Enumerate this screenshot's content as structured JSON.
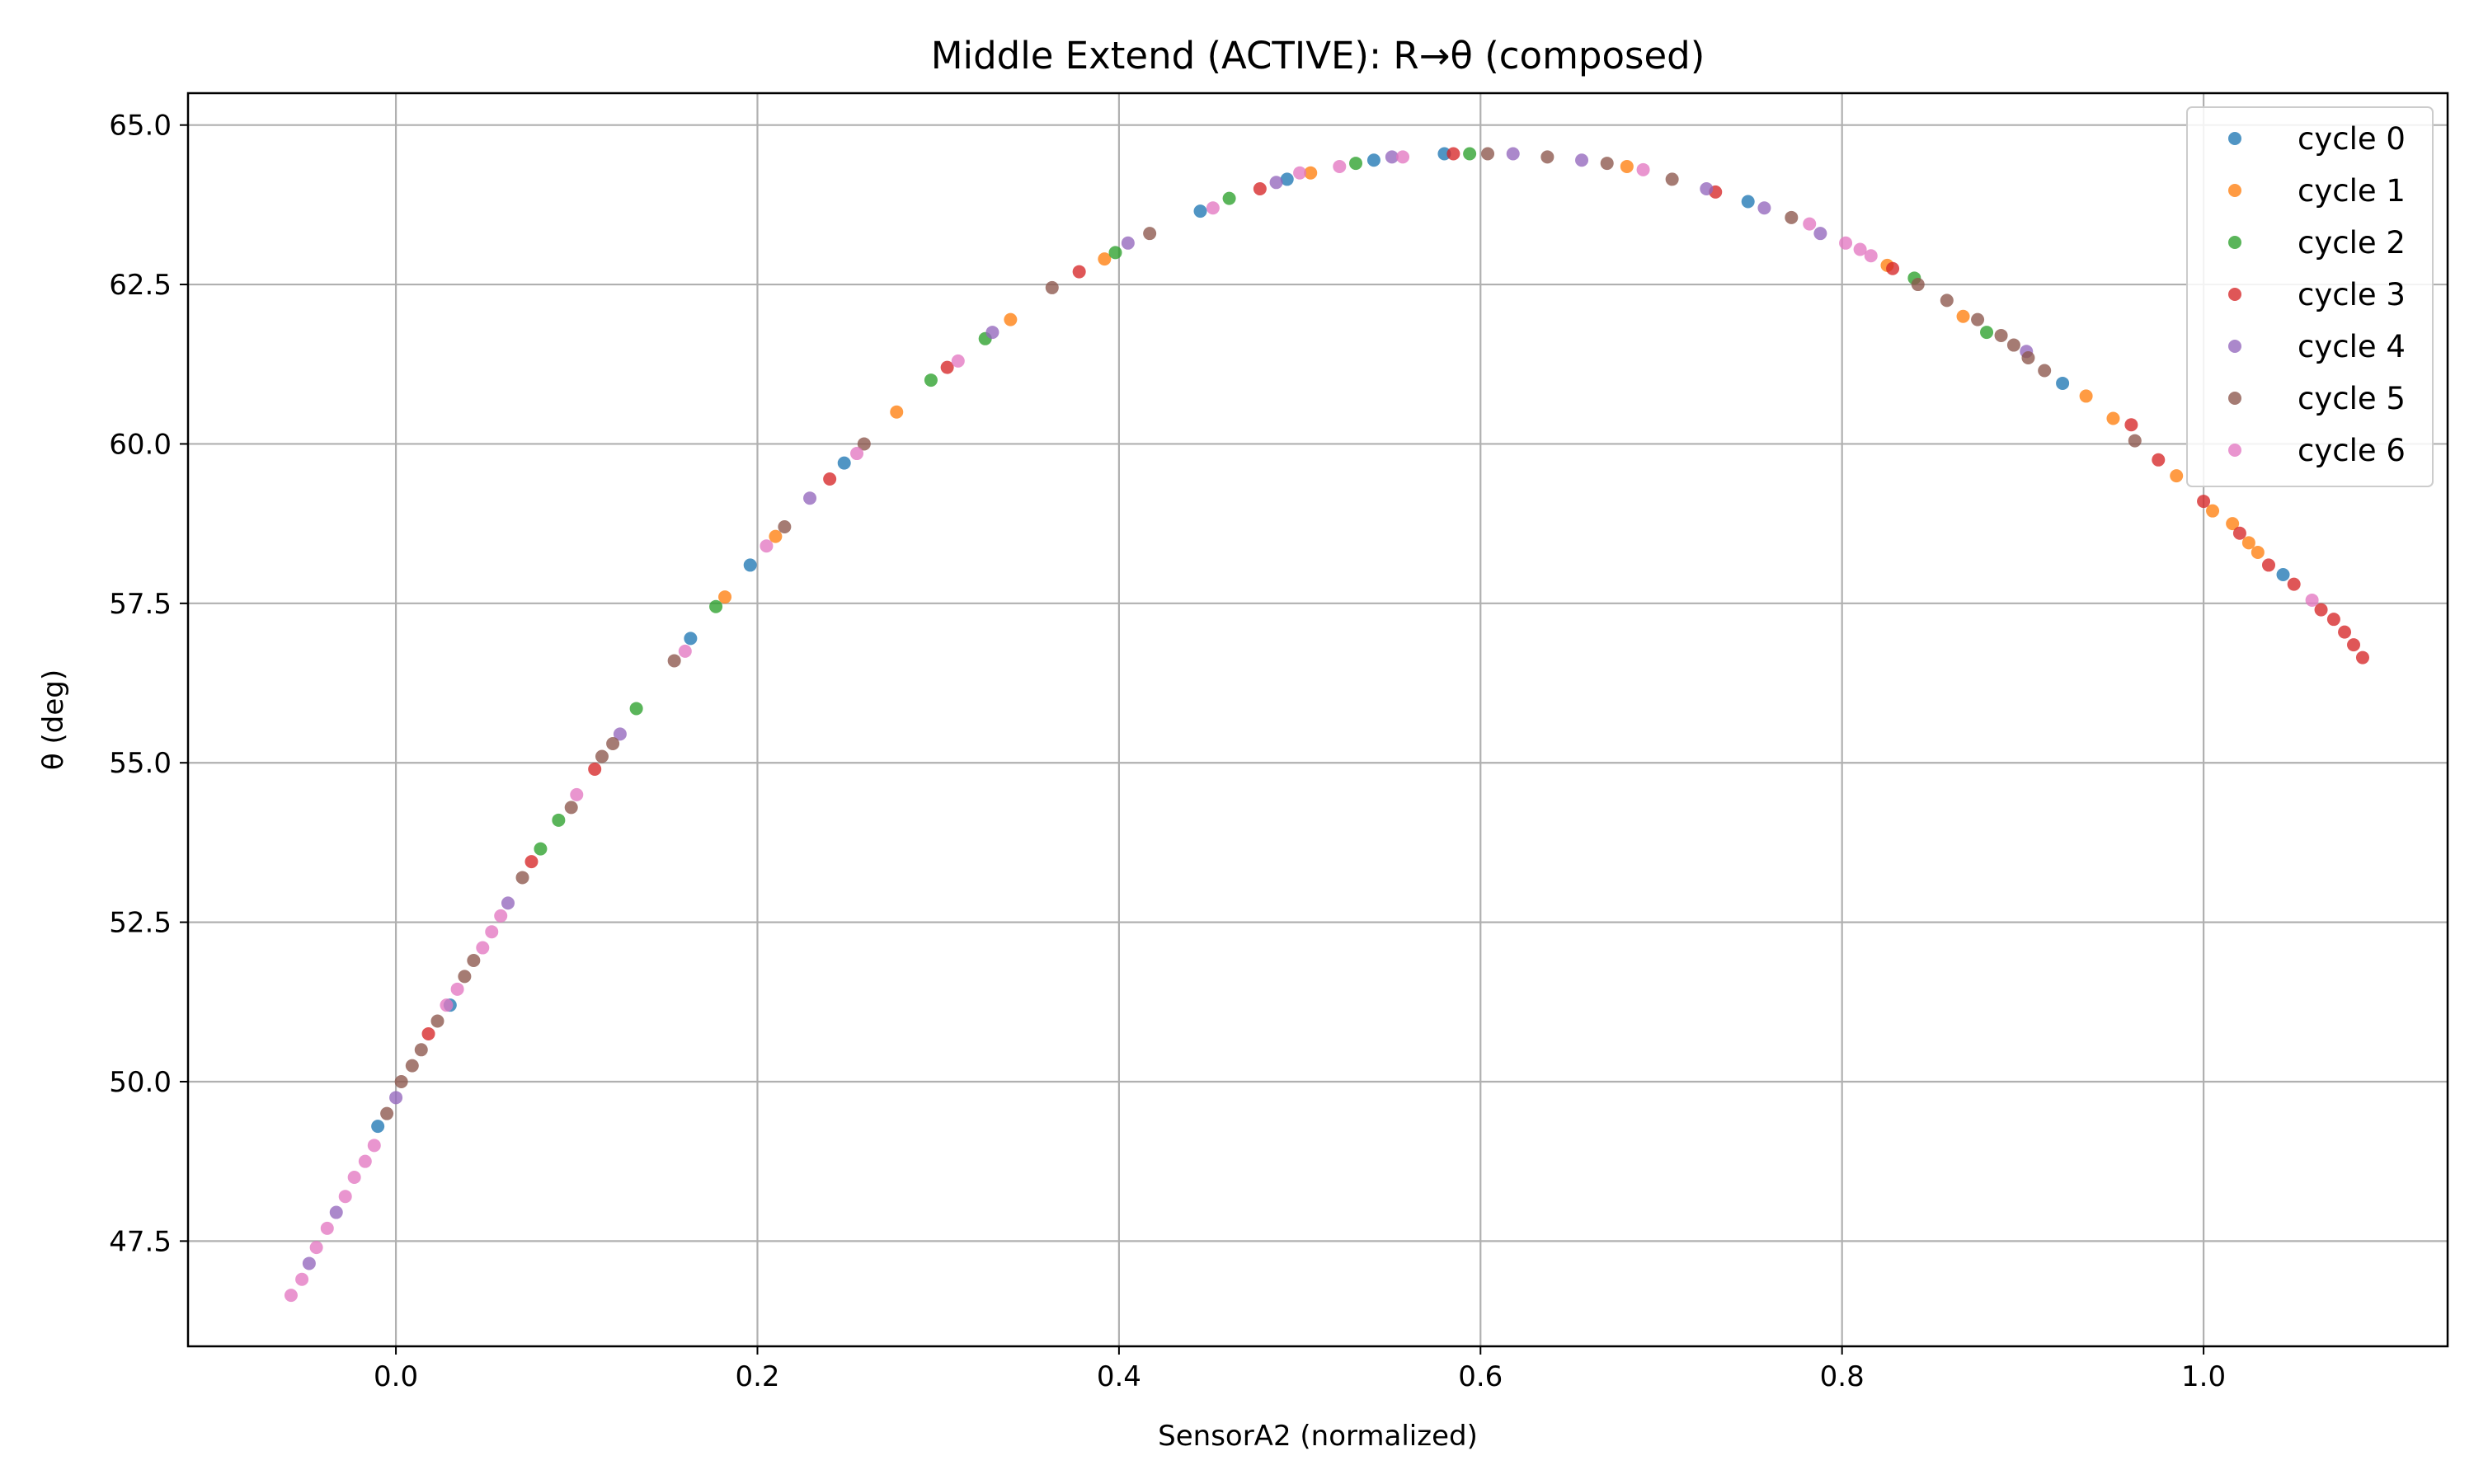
{
  "chart_data": {
    "type": "scatter",
    "title": "Middle Extend (ACTIVE): R→θ (composed)",
    "xlabel": "SensorA2 (normalized)",
    "ylabel": "θ (deg)",
    "xlim": [
      -0.115,
      1.135
    ],
    "ylim": [
      45.85,
      65.5
    ],
    "xticks": [
      0.0,
      0.2,
      0.4,
      0.6,
      0.8,
      1.0
    ],
    "xtick_labels": [
      "0.0",
      "0.2",
      "0.4",
      "0.6",
      "0.8",
      "1.0"
    ],
    "yticks": [
      47.5,
      50.0,
      52.5,
      55.0,
      57.5,
      60.0,
      62.5,
      65.0
    ],
    "ytick_labels": [
      "47.5",
      "50.0",
      "52.5",
      "55.0",
      "57.5",
      "60.0",
      "62.5",
      "65.0"
    ],
    "grid": true,
    "legend_position": "top-right",
    "series": [
      {
        "name": "cycle 0",
        "color": "#1f77b4",
        "points": [
          [
            0.196,
            58.1
          ],
          [
            0.163,
            56.95
          ],
          [
            0.248,
            59.7
          ],
          [
            0.445,
            63.65
          ],
          [
            0.493,
            64.15
          ],
          [
            0.541,
            64.45
          ],
          [
            0.58,
            64.55
          ],
          [
            0.748,
            63.8
          ],
          [
            0.922,
            60.95
          ],
          [
            1.044,
            57.95
          ],
          [
            0.03,
            51.2
          ],
          [
            -0.01,
            49.3
          ]
        ]
      },
      {
        "name": "cycle 1",
        "color": "#ff7f0e",
        "points": [
          [
            0.182,
            57.6
          ],
          [
            0.21,
            58.55
          ],
          [
            0.277,
            60.5
          ],
          [
            0.34,
            61.95
          ],
          [
            0.392,
            62.9
          ],
          [
            0.506,
            64.25
          ],
          [
            0.681,
            64.35
          ],
          [
            0.825,
            62.8
          ],
          [
            0.867,
            62.0
          ],
          [
            0.935,
            60.75
          ],
          [
            0.95,
            60.4
          ],
          [
            0.985,
            59.5
          ],
          [
            1.005,
            58.95
          ],
          [
            1.016,
            58.75
          ],
          [
            1.025,
            58.45
          ],
          [
            1.03,
            58.3
          ]
        ]
      },
      {
        "name": "cycle 2",
        "color": "#2ca02c",
        "points": [
          [
            0.133,
            55.85
          ],
          [
            0.177,
            57.45
          ],
          [
            0.09,
            54.1
          ],
          [
            0.08,
            53.65
          ],
          [
            0.296,
            61.0
          ],
          [
            0.326,
            61.65
          ],
          [
            0.398,
            63.0
          ],
          [
            0.461,
            63.85
          ],
          [
            0.531,
            64.4
          ],
          [
            0.594,
            64.55
          ],
          [
            0.84,
            62.6
          ],
          [
            0.88,
            61.75
          ]
        ]
      },
      {
        "name": "cycle 3",
        "color": "#d62728",
        "points": [
          [
            0.018,
            50.75
          ],
          [
            0.075,
            53.45
          ],
          [
            0.11,
            54.9
          ],
          [
            0.24,
            59.45
          ],
          [
            0.305,
            61.2
          ],
          [
            0.378,
            62.7
          ],
          [
            0.478,
            64.0
          ],
          [
            0.585,
            64.55
          ],
          [
            0.73,
            63.95
          ],
          [
            0.828,
            62.75
          ],
          [
            0.96,
            60.3
          ],
          [
            0.975,
            59.75
          ],
          [
            1.0,
            59.1
          ],
          [
            1.02,
            58.6
          ],
          [
            1.036,
            58.1
          ],
          [
            1.05,
            57.8
          ],
          [
            1.065,
            57.4
          ],
          [
            1.072,
            57.25
          ],
          [
            1.078,
            57.05
          ],
          [
            1.083,
            56.85
          ],
          [
            1.088,
            56.65
          ]
        ]
      },
      {
        "name": "cycle 4",
        "color": "#9467bd",
        "points": [
          [
            -0.048,
            47.15
          ],
          [
            -0.033,
            47.95
          ],
          [
            0.0,
            49.75
          ],
          [
            0.062,
            52.8
          ],
          [
            0.124,
            55.45
          ],
          [
            0.229,
            59.15
          ],
          [
            0.33,
            61.75
          ],
          [
            0.405,
            63.15
          ],
          [
            0.487,
            64.1
          ],
          [
            0.551,
            64.5
          ],
          [
            0.618,
            64.55
          ],
          [
            0.656,
            64.45
          ],
          [
            0.725,
            64.0
          ],
          [
            0.757,
            63.7
          ],
          [
            0.788,
            63.3
          ],
          [
            0.902,
            61.45
          ]
        ]
      },
      {
        "name": "cycle 5",
        "color": "#8c564b",
        "points": [
          [
            0.003,
            50.0
          ],
          [
            0.009,
            50.25
          ],
          [
            0.014,
            50.5
          ],
          [
            0.023,
            50.95
          ],
          [
            0.038,
            51.65
          ],
          [
            0.043,
            51.9
          ],
          [
            0.07,
            53.2
          ],
          [
            0.097,
            54.3
          ],
          [
            0.114,
            55.1
          ],
          [
            0.12,
            55.3
          ],
          [
            0.154,
            56.6
          ],
          [
            0.215,
            58.7
          ],
          [
            0.259,
            60.0
          ],
          [
            0.363,
            62.45
          ],
          [
            0.417,
            63.3
          ],
          [
            0.604,
            64.55
          ],
          [
            0.637,
            64.5
          ],
          [
            0.67,
            64.4
          ],
          [
            0.706,
            64.15
          ],
          [
            0.772,
            63.55
          ],
          [
            0.842,
            62.5
          ],
          [
            0.858,
            62.25
          ],
          [
            0.875,
            61.95
          ],
          [
            0.888,
            61.7
          ],
          [
            0.895,
            61.55
          ],
          [
            0.903,
            61.35
          ],
          [
            0.912,
            61.15
          ],
          [
            0.962,
            60.05
          ],
          [
            -0.005,
            49.5
          ]
        ]
      },
      {
        "name": "cycle 6",
        "color": "#e377c2",
        "points": [
          [
            -0.058,
            46.65
          ],
          [
            -0.052,
            46.9
          ],
          [
            -0.044,
            47.4
          ],
          [
            -0.038,
            47.7
          ],
          [
            -0.028,
            48.2
          ],
          [
            -0.023,
            48.5
          ],
          [
            -0.017,
            48.75
          ],
          [
            -0.012,
            49.0
          ],
          [
            0.028,
            51.2
          ],
          [
            0.034,
            51.45
          ],
          [
            0.048,
            52.1
          ],
          [
            0.053,
            52.35
          ],
          [
            0.058,
            52.6
          ],
          [
            0.1,
            54.5
          ],
          [
            0.16,
            56.75
          ],
          [
            0.205,
            58.4
          ],
          [
            0.255,
            59.85
          ],
          [
            0.311,
            61.3
          ],
          [
            0.452,
            63.7
          ],
          [
            0.5,
            64.25
          ],
          [
            0.522,
            64.35
          ],
          [
            0.557,
            64.5
          ],
          [
            0.69,
            64.3
          ],
          [
            0.782,
            63.45
          ],
          [
            0.802,
            63.15
          ],
          [
            0.81,
            63.05
          ],
          [
            0.816,
            62.95
          ],
          [
            1.06,
            57.55
          ]
        ]
      }
    ]
  }
}
